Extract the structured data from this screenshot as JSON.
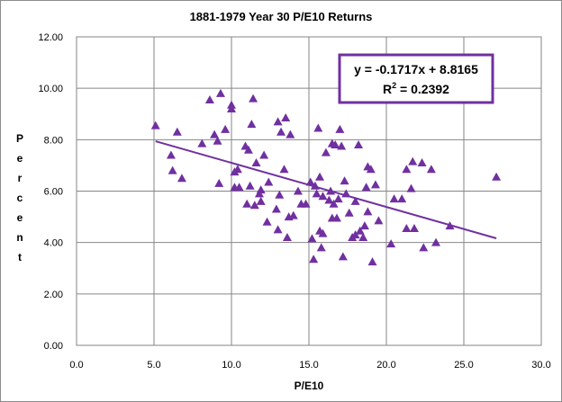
{
  "chart_data": {
    "type": "scatter",
    "title": "1881-1979 Year 30 P/E10 Returns",
    "xlabel": "P/E10",
    "ylabel": "Percent",
    "xlim": [
      0,
      30
    ],
    "ylim": [
      0,
      12
    ],
    "x_ticks": [
      "0.0",
      "5.0",
      "10.0",
      "15.0",
      "20.0",
      "25.0",
      "30.0"
    ],
    "y_ticks": [
      "0.00",
      "2.00",
      "4.00",
      "6.00",
      "8.00",
      "10.00",
      "12.00"
    ],
    "grid": true,
    "marker_color": "#7030A0",
    "trendline": {
      "slope": -0.1717,
      "intercept": 8.8165,
      "x_range": [
        5.1,
        27.1
      ],
      "equation_label": "y = -0.1717x + 8.8165",
      "r2_prefix": "R",
      "r2_exponent": "2",
      "r2_value": " = 0.2392",
      "color": "#7030A0"
    },
    "points": [
      [
        5.1,
        8.55
      ],
      [
        6.1,
        7.4
      ],
      [
        6.2,
        6.8
      ],
      [
        6.5,
        8.3
      ],
      [
        6.8,
        6.5
      ],
      [
        8.1,
        7.85
      ],
      [
        8.6,
        9.55
      ],
      [
        8.9,
        8.2
      ],
      [
        9.1,
        7.95
      ],
      [
        9.2,
        6.3
      ],
      [
        9.3,
        9.8
      ],
      [
        9.6,
        8.4
      ],
      [
        10.0,
        9.35
      ],
      [
        10.0,
        9.2
      ],
      [
        10.2,
        6.75
      ],
      [
        10.2,
        6.15
      ],
      [
        10.4,
        6.85
      ],
      [
        10.5,
        6.15
      ],
      [
        10.9,
        7.75
      ],
      [
        11.0,
        5.5
      ],
      [
        11.1,
        7.6
      ],
      [
        11.2,
        6.2
      ],
      [
        11.3,
        8.6
      ],
      [
        11.4,
        9.6
      ],
      [
        11.5,
        5.45
      ],
      [
        11.6,
        7.1
      ],
      [
        11.8,
        5.9
      ],
      [
        11.9,
        5.6
      ],
      [
        11.9,
        6.05
      ],
      [
        12.1,
        7.4
      ],
      [
        12.3,
        4.8
      ],
      [
        12.4,
        6.35
      ],
      [
        12.9,
        5.3
      ],
      [
        13.0,
        4.5
      ],
      [
        13.0,
        8.7
      ],
      [
        13.1,
        5.85
      ],
      [
        13.2,
        8.3
      ],
      [
        13.4,
        6.85
      ],
      [
        13.5,
        8.85
      ],
      [
        13.6,
        4.2
      ],
      [
        13.7,
        5.0
      ],
      [
        13.8,
        8.2
      ],
      [
        14.0,
        5.05
      ],
      [
        14.3,
        6.0
      ],
      [
        14.5,
        5.5
      ],
      [
        14.8,
        5.5
      ],
      [
        15.1,
        6.35
      ],
      [
        15.2,
        4.15
      ],
      [
        15.3,
        3.35
      ],
      [
        15.4,
        6.2
      ],
      [
        15.5,
        5.9
      ],
      [
        15.6,
        8.45
      ],
      [
        15.7,
        4.45
      ],
      [
        15.7,
        6.55
      ],
      [
        15.8,
        3.8
      ],
      [
        15.9,
        5.8
      ],
      [
        15.9,
        4.35
      ],
      [
        16.1,
        7.5
      ],
      [
        16.3,
        5.65
      ],
      [
        16.4,
        6.0
      ],
      [
        16.5,
        4.95
      ],
      [
        16.5,
        7.85
      ],
      [
        16.6,
        5.5
      ],
      [
        16.7,
        7.8
      ],
      [
        16.8,
        4.95
      ],
      [
        16.9,
        5.7
      ],
      [
        17.0,
        8.4
      ],
      [
        17.1,
        7.75
      ],
      [
        17.2,
        3.45
      ],
      [
        17.3,
        6.4
      ],
      [
        17.4,
        5.9
      ],
      [
        17.6,
        5.15
      ],
      [
        17.8,
        4.2
      ],
      [
        18.0,
        5.6
      ],
      [
        18.0,
        4.3
      ],
      [
        18.2,
        7.8
      ],
      [
        18.3,
        4.45
      ],
      [
        18.5,
        4.2
      ],
      [
        18.6,
        4.65
      ],
      [
        18.7,
        6.15
      ],
      [
        18.8,
        5.2
      ],
      [
        18.8,
        6.95
      ],
      [
        19.0,
        6.85
      ],
      [
        19.1,
        3.25
      ],
      [
        19.3,
        6.25
      ],
      [
        19.5,
        4.85
      ],
      [
        20.3,
        3.95
      ],
      [
        20.5,
        5.7
      ],
      [
        21.0,
        5.7
      ],
      [
        21.3,
        4.55
      ],
      [
        21.3,
        6.85
      ],
      [
        21.6,
        6.1
      ],
      [
        21.7,
        7.15
      ],
      [
        21.8,
        4.55
      ],
      [
        22.3,
        7.1
      ],
      [
        22.4,
        3.8
      ],
      [
        22.9,
        6.85
      ],
      [
        23.2,
        4.0
      ],
      [
        24.1,
        4.65
      ],
      [
        27.1,
        6.55
      ]
    ]
  }
}
